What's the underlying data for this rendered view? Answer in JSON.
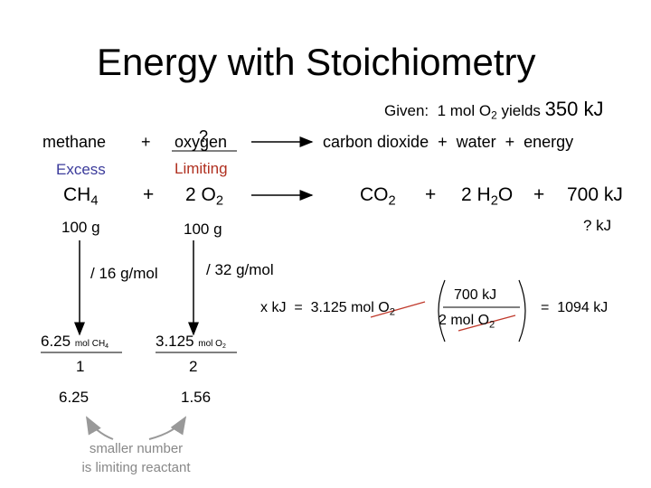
{
  "title": "Energy with Stoichiometry",
  "given": {
    "text": "Given:  1 mol O",
    "sub": "2",
    "mid": " yields ",
    "amount": "350 kJ"
  },
  "word_equation": {
    "reactant1": "methane",
    "plus": "+",
    "reactant2": "oxygen",
    "unknown": "?",
    "products": "carbon dioxide  +  water  +  energy"
  },
  "roles": {
    "reactant1": "Excess",
    "reactant2": "Limiting"
  },
  "equation": {
    "methane": [
      "CH",
      "4"
    ],
    "plus1": "+",
    "oxygen": [
      "2 O",
      "2"
    ],
    "carbon_dioxide": [
      "CO",
      "2"
    ],
    "plus2": "+",
    "water": [
      "2 H",
      "2",
      "O"
    ],
    "plus3": "+",
    "energy": "700 kJ"
  },
  "masses": {
    "methane": "100 g",
    "oxygen": "100 g",
    "energy": "? kJ"
  },
  "molar_masses": {
    "methane": "/ 16 g/mol",
    "oxygen": "/ 32 g/mol"
  },
  "calculation": {
    "lhs": "x kJ  =  3.125 ",
    "lhs_unit": [
      "mol O",
      "2"
    ],
    "numerator": "700 kJ",
    "denominator": [
      "2 mol O",
      "2"
    ],
    "result": "=  1094 kJ"
  },
  "columns": [
    {
      "moles": "6.25",
      "unit": [
        "mol CH",
        "4"
      ],
      "coefficient": "1",
      "ratio": "6.25"
    },
    {
      "moles": "3.125",
      "unit": [
        "mol O",
        "2"
      ],
      "coefficient": "2",
      "ratio": "1.56"
    }
  ],
  "note": [
    "smaller number",
    "is limiting reactant"
  ]
}
